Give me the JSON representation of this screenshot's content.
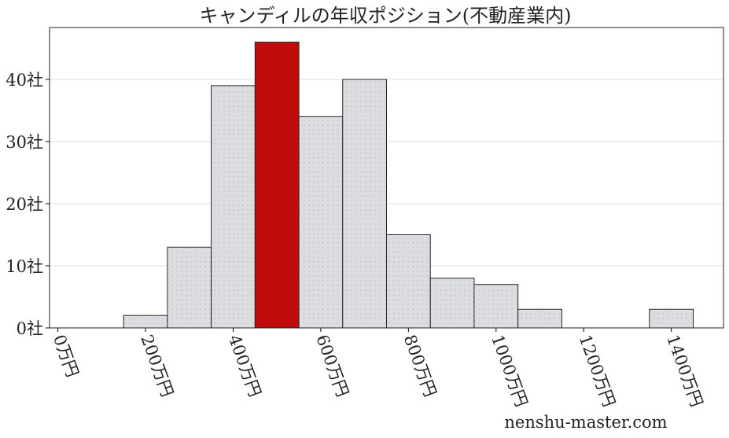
{
  "chart_data": {
    "type": "histogram",
    "title": "キャンディルの年収ポジション(不動産業内)",
    "bins": [
      150,
      250,
      350,
      450,
      550,
      650,
      750,
      850,
      950,
      1050,
      1150,
      1250,
      1350,
      1450
    ],
    "values": [
      2,
      13,
      39,
      46,
      34,
      40,
      15,
      8,
      7,
      3,
      0,
      0,
      3
    ],
    "colors": [
      "#dcdde0",
      "#dcdde0",
      "#dcdde0",
      "#c00c0c",
      "#dcdde0",
      "#dcdde0",
      "#dcdde0",
      "#dcdde0",
      "#dcdde0",
      "#dcdde0",
      "#dcdde0",
      "#dcdde0",
      "#dcdde0"
    ],
    "xlim": [
      -19,
      1519
    ],
    "ylim": [
      0,
      48.35
    ],
    "xticks": [
      {
        "value": 0,
        "label": "0万円"
      },
      {
        "value": 200,
        "label": "200万円"
      },
      {
        "value": 400,
        "label": "400万円"
      },
      {
        "value": 600,
        "label": "600万円"
      },
      {
        "value": 800,
        "label": "800万円"
      },
      {
        "value": 1000,
        "label": "1000万円"
      },
      {
        "value": 1200,
        "label": "1200万円"
      },
      {
        "value": 1400,
        "label": "1400万円"
      }
    ],
    "yticks": [
      {
        "value": 0,
        "label": "0社"
      },
      {
        "value": 10,
        "label": "10社"
      },
      {
        "value": 20,
        "label": "20社"
      },
      {
        "value": 30,
        "label": "30社"
      },
      {
        "value": 40,
        "label": "40社"
      }
    ],
    "grid": true,
    "watermark": "nenshu-master.com"
  }
}
